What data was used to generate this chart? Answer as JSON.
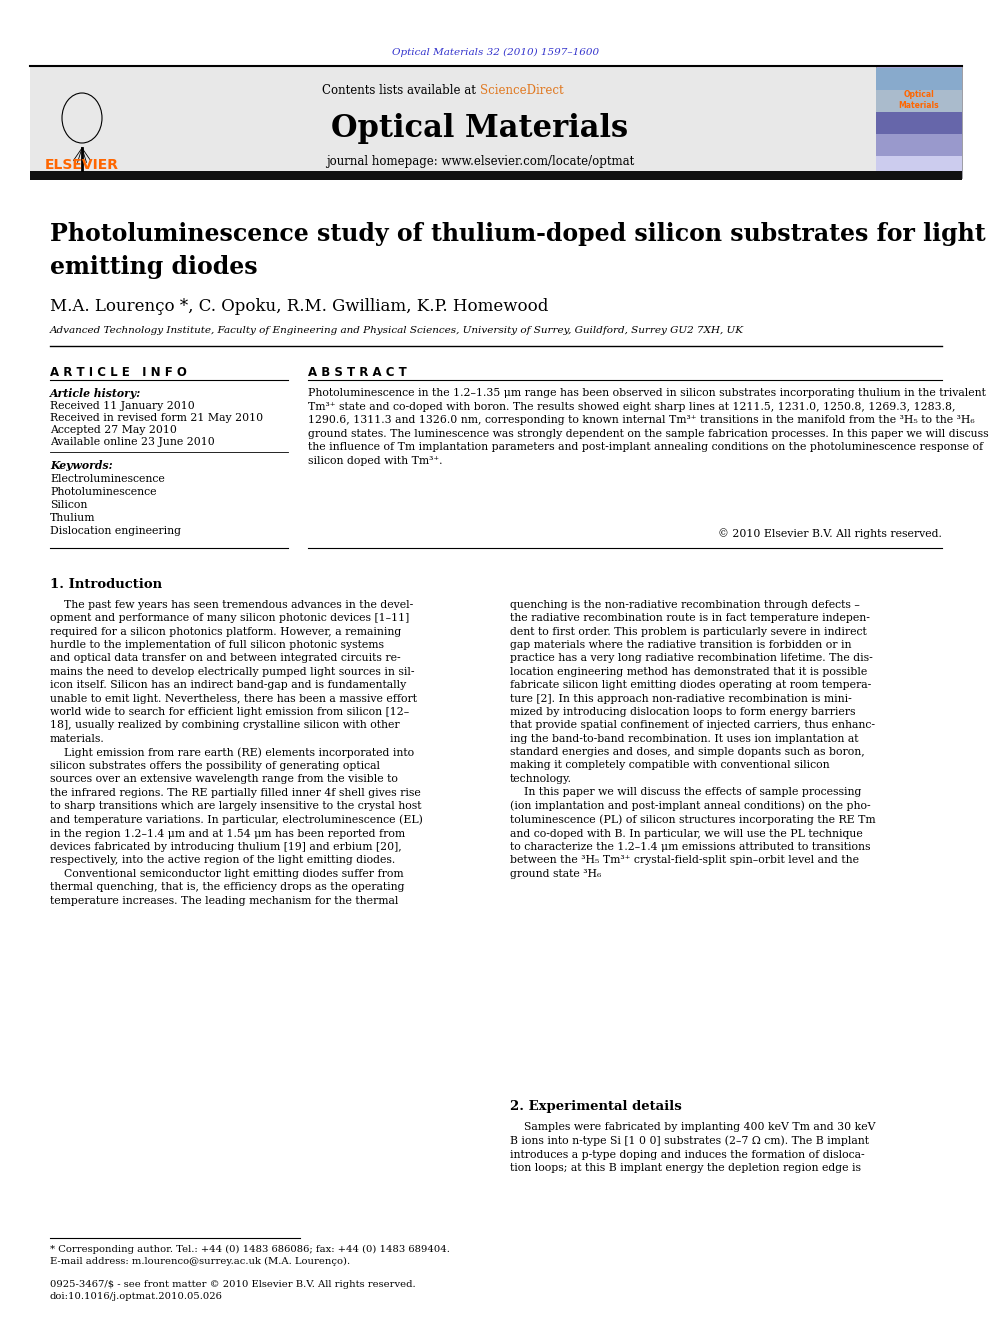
{
  "journal_ref": "Optical Materials 32 (2010) 1597–1600",
  "journal_name": "Optical Materials",
  "contents_text": "Contents lists available at ",
  "sciencedirect": "ScienceDirect",
  "homepage_text": "journal homepage: www.elsevier.com/locate/optmat",
  "title": "Photoluminescence study of thulium-doped silicon substrates for light\nemitting diodes",
  "authors": "M.A. Lourenço *, C. Opoku, R.M. Gwilliam, K.P. Homewood",
  "affiliation": "Advanced Technology Institute, Faculty of Engineering and Physical Sciences, University of Surrey, Guildford, Surrey GU2 7XH, UK",
  "article_info_header": "A R T I C L E   I N F O",
  "abstract_header": "A B S T R A C T",
  "article_history_label": "Article history:",
  "received": "Received 11 January 2010",
  "received_revised": "Received in revised form 21 May 2010",
  "accepted": "Accepted 27 May 2010",
  "available": "Available online 23 June 2010",
  "keywords_label": "Keywords:",
  "keywords": [
    "Electroluminescence",
    "Photoluminescence",
    "Silicon",
    "Thulium",
    "Dislocation engineering"
  ],
  "abstract_text": "Photoluminescence in the 1.2–1.35 μm range has been observed in silicon substrates incorporating thulium in the trivalent Tm³⁺ state and co-doped with boron. The results showed eight sharp lines at 1211.5, 1231.0, 1250.8, 1269.3, 1283.8, 1290.6, 1311.3 and 1326.0 nm, corresponding to known internal Tm³⁺ transitions in the manifold from the ³H₅ to the ³H₆ ground states. The luminescence was strongly dependent on the sample fabrication processes. In this paper we will discuss the influence of Tm implantation parameters and post-implant annealing conditions on the photoluminescence response of silicon doped with Tm³⁺.",
  "copyright": "© 2010 Elsevier B.V. All rights reserved.",
  "section1_col1": "    The past few years has seen tremendous advances in the devel-\nopment and performance of many silicon photonic devices [1–11]\nrequired for a silicon photonics platform. However, a remaining\nhurdle to the implementation of full silicon photonic systems\nand optical data transfer on and between integrated circuits re-\nmains the need to develop electrically pumped light sources in sil-\nicon itself. Silicon has an indirect band-gap and is fundamentally\nunable to emit light. Nevertheless, there has been a massive effort\nworld wide to search for efficient light emission from silicon [12–\n18], usually realized by combining crystalline silicon with other\nmaterials.\n    Light emission from rare earth (RE) elements incorporated into\nsilicon substrates offers the possibility of generating optical\nsources over an extensive wavelength range from the visible to\nthe infrared regions. The RE partially filled inner 4f shell gives rise\nto sharp transitions which are largely insensitive to the crystal host\nand temperature variations. In particular, electroluminescence (EL)\nin the region 1.2–1.4 μm and at 1.54 μm has been reported from\ndevices fabricated by introducing thulium [19] and erbium [20],\nrespectively, into the active region of the light emitting diodes.\n    Conventional semiconductor light emitting diodes suffer from\nthermal quenching, that is, the efficiency drops as the operating\ntemperature increases. The leading mechanism for the thermal",
  "section1_col2": "quenching is the non-radiative recombination through defects –\nthe radiative recombination route is in fact temperature indepen-\ndent to first order. This problem is particularly severe in indirect\ngap materials where the radiative transition is forbidden or in\npractice has a very long radiative recombination lifetime. The dis-\nlocation engineering method has demonstrated that it is possible\nfabricate silicon light emitting diodes operating at room tempera-\nture [2]. In this approach non-radiative recombination is mini-\nmized by introducing dislocation loops to form energy barriers\nthat provide spatial confinement of injected carriers, thus enhanc-\ning the band-to-band recombination. It uses ion implantation at\nstandard energies and doses, and simple dopants such as boron,\nmaking it completely compatible with conventional silicon\ntechnology.\n    In this paper we will discuss the effects of sample processing\n(ion implantation and post-implant anneal conditions) on the pho-\ntoluminescence (PL) of silicon structures incorporating the RE Tm\nand co-doped with B. In particular, we will use the PL technique\nto characterize the 1.2–1.4 μm emissions attributed to transitions\nbetween the ³H₅ Tm³⁺ crystal-field-split spin–orbit level and the\nground state ³H₆",
  "section2_header": "2. Experimental details",
  "section2_start": "    Samples were fabricated by implanting 400 keV Tm and 30 keV\nB ions into n-type Si [1 0 0] substrates (2–7 Ω cm). The B implant\nintroduces a p-type doping and induces the formation of disloca-\ntion loops; at this B implant energy the depletion region edge is",
  "footnote1": "* Corresponding author. Tel.: +44 (0) 1483 686086; fax: +44 (0) 1483 689404.",
  "footnote2": "E-mail address: m.lourenco@surrey.ac.uk (M.A. Lourenço).",
  "footer1": "0925-3467/$ - see front matter © 2010 Elsevier B.V. All rights reserved.",
  "footer2": "doi:10.1016/j.optmat.2010.05.026",
  "orange_color": "#ff6600",
  "link_color": "#3333cc",
  "sciencedirect_color": "#e07820",
  "header_bg": "#e8e8e8",
  "cover_bg": "#8888bb"
}
